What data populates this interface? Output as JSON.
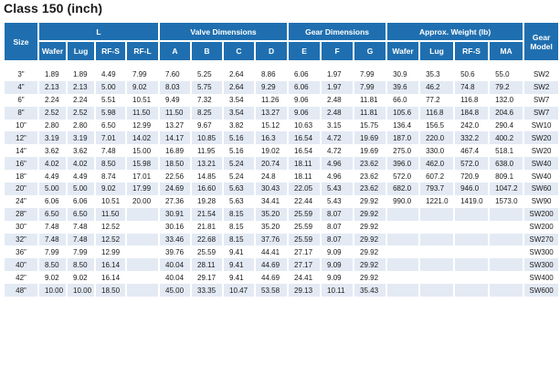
{
  "title": "Class 150 (inch)",
  "headers": {
    "size": "Size",
    "gear_model": "Gear Model",
    "groups": [
      {
        "label": "L",
        "cols": [
          "Wafer",
          "Lug",
          "RF-S",
          "RF-L"
        ]
      },
      {
        "label": "Valve Dimensions",
        "cols": [
          "A",
          "B",
          "C",
          "D"
        ]
      },
      {
        "label": "Gear Dimensions",
        "cols": [
          "E",
          "F",
          "G"
        ]
      },
      {
        "label": "Approx. Weight (lb)",
        "cols": [
          "Wafer",
          "Lug",
          "RF-S",
          "MA"
        ]
      }
    ]
  },
  "rows": [
    [
      "3\"",
      "1.89",
      "1.89",
      "4.49",
      "7.99",
      "7.60",
      "5.25",
      "2.64",
      "8.86",
      "6.06",
      "1.97",
      "7.99",
      "30.9",
      "35.3",
      "50.6",
      "55.0",
      "SW2"
    ],
    [
      "4\"",
      "2.13",
      "2.13",
      "5.00",
      "9.02",
      "8.03",
      "5.75",
      "2.64",
      "9.29",
      "6.06",
      "1.97",
      "7.99",
      "39.6",
      "46.2",
      "74.8",
      "79.2",
      "SW2"
    ],
    [
      "6\"",
      "2.24",
      "2.24",
      "5.51",
      "10.51",
      "9.49",
      "7.32",
      "3.54",
      "11.26",
      "9.06",
      "2.48",
      "11.81",
      "66.0",
      "77.2",
      "116.8",
      "132.0",
      "SW7"
    ],
    [
      "8\"",
      "2.52",
      "2.52",
      "5.98",
      "11.50",
      "11.50",
      "8.25",
      "3.54",
      "13.27",
      "9.06",
      "2.48",
      "11.81",
      "105.6",
      "116.8",
      "184.8",
      "204.6",
      "SW7"
    ],
    [
      "10\"",
      "2.80",
      "2.80",
      "6.50",
      "12.99",
      "13.27",
      "9.67",
      "3.82",
      "15.12",
      "10.63",
      "3.15",
      "15.75",
      "136.4",
      "156.5",
      "242.0",
      "290.4",
      "SW10"
    ],
    [
      "12\"",
      "3.19",
      "3.19",
      "7.01",
      "14.02",
      "14.17",
      "10.85",
      "5.16",
      "16.3",
      "16.54",
      "4.72",
      "19.69",
      "187.0",
      "220.0",
      "332.2",
      "400.2",
      "SW20"
    ],
    [
      "14\"",
      "3.62",
      "3.62",
      "7.48",
      "15.00",
      "16.89",
      "11.95",
      "5.16",
      "19.02",
      "16.54",
      "4.72",
      "19.69",
      "275.0",
      "330.0",
      "467.4",
      "518.1",
      "SW20"
    ],
    [
      "16\"",
      "4.02",
      "4.02",
      "8.50",
      "15.98",
      "18.50",
      "13.21",
      "5.24",
      "20.74",
      "18.11",
      "4.96",
      "23.62",
      "396.0",
      "462.0",
      "572.0",
      "638.0",
      "SW40"
    ],
    [
      "18\"",
      "4.49",
      "4.49",
      "8.74",
      "17.01",
      "22.56",
      "14.85",
      "5.24",
      "24.8",
      "18.11",
      "4.96",
      "23.62",
      "572.0",
      "607.2",
      "720.9",
      "809.1",
      "SW40"
    ],
    [
      "20\"",
      "5.00",
      "5.00",
      "9.02",
      "17.99",
      "24.69",
      "16.60",
      "5.63",
      "30.43",
      "22.05",
      "5.43",
      "23.62",
      "682.0",
      "793.7",
      "946.0",
      "1047.2",
      "SW60"
    ],
    [
      "24\"",
      "6.06",
      "6.06",
      "10.51",
      "20.00",
      "27.36",
      "19.28",
      "5.63",
      "34.41",
      "22.44",
      "5.43",
      "29.92",
      "990.0",
      "1221.0",
      "1419.0",
      "1573.0",
      "SW90"
    ],
    [
      "28\"",
      "6.50",
      "6.50",
      "11.50",
      "",
      "30.91",
      "21.54",
      "8.15",
      "35.20",
      "25.59",
      "8.07",
      "29.92",
      "",
      "",
      "",
      "",
      "SW200"
    ],
    [
      "30\"",
      "7.48",
      "7.48",
      "12.52",
      "",
      "30.16",
      "21.81",
      "8.15",
      "35.20",
      "25.59",
      "8.07",
      "29.92",
      "",
      "",
      "",
      "",
      "SW200"
    ],
    [
      "32\"",
      "7.48",
      "7.48",
      "12.52",
      "",
      "33.46",
      "22.68",
      "8.15",
      "37.76",
      "25.59",
      "8.07",
      "29.92",
      "",
      "",
      "",
      "",
      "SW270"
    ],
    [
      "36\"",
      "7.99",
      "7.99",
      "12.99",
      "",
      "39.76",
      "25.59",
      "9.41",
      "44.41",
      "27.17",
      "9.09",
      "29.92",
      "",
      "",
      "",
      "",
      "SW300"
    ],
    [
      "40\"",
      "8.50",
      "8.50",
      "16.14",
      "",
      "40.04",
      "28.11",
      "9.41",
      "44.69",
      "27.17",
      "9.09",
      "29.92",
      "",
      "",
      "",
      "",
      "SW300"
    ],
    [
      "42\"",
      "9.02",
      "9.02",
      "16.14",
      "",
      "40.04",
      "29.17",
      "9.41",
      "44.69",
      "24.41",
      "9.09",
      "29.92",
      "",
      "",
      "",
      "",
      "SW400"
    ],
    [
      "48\"",
      "10.00",
      "10.00",
      "18.50",
      "",
      "45.00",
      "33.35",
      "10.47",
      "53.58",
      "29.13",
      "10.11",
      "35.43",
      "",
      "",
      "",
      "",
      "SW600"
    ]
  ],
  "colors": {
    "header": "#1f6fb0",
    "stripe": "#e3eaf4"
  }
}
